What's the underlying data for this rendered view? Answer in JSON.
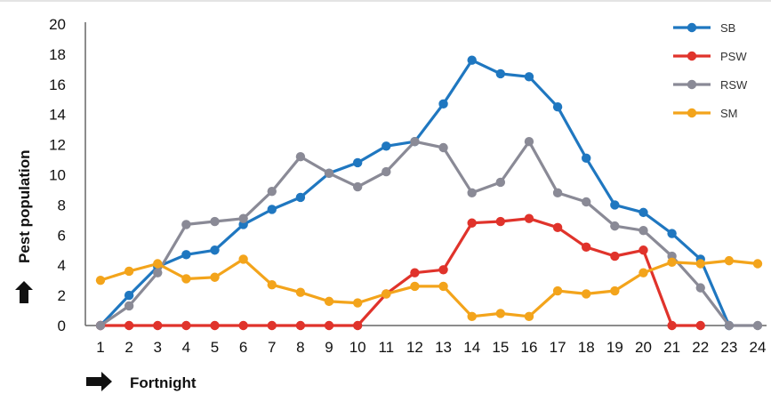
{
  "chart_data": {
    "type": "line",
    "title": "",
    "xlabel": "Fortnight",
    "ylabel": "Pest population",
    "categories": [
      1,
      2,
      3,
      4,
      5,
      6,
      7,
      8,
      9,
      10,
      11,
      12,
      13,
      14,
      15,
      16,
      17,
      18,
      19,
      20,
      21,
      22,
      23,
      24
    ],
    "ylim": [
      0,
      20
    ],
    "yticks": [
      0,
      2,
      4,
      6,
      8,
      10,
      12,
      14,
      16,
      18,
      20
    ],
    "grid": false,
    "legend_position": "top-right",
    "series": [
      {
        "name": "SB",
        "color": "#1f77c0",
        "values": [
          0,
          2,
          3.9,
          4.7,
          5,
          6.7,
          7.7,
          8.5,
          10.1,
          10.8,
          11.9,
          12.2,
          14.7,
          17.6,
          16.7,
          16.5,
          14.5,
          11.1,
          8,
          7.5,
          6.1,
          4.4,
          0,
          null
        ]
      },
      {
        "name": "PSW",
        "color": "#e0332b",
        "values": [
          0,
          0,
          0,
          0,
          0,
          0,
          0,
          0,
          0,
          0,
          2.1,
          3.5,
          3.7,
          6.8,
          6.9,
          7.1,
          6.5,
          5.2,
          4.6,
          5,
          0,
          0,
          null,
          null
        ]
      },
      {
        "name": "RSW",
        "color": "#8a8a96",
        "values": [
          0,
          1.3,
          3.5,
          6.7,
          6.9,
          7.1,
          8.9,
          11.2,
          10.1,
          9.2,
          10.2,
          12.2,
          11.8,
          8.8,
          9.5,
          12.2,
          8.8,
          8.2,
          6.6,
          6.3,
          4.6,
          2.5,
          0,
          0
        ]
      },
      {
        "name": "SM",
        "color": "#f3a41b",
        "values": [
          3,
          3.6,
          4.1,
          3.1,
          3.2,
          4.4,
          2.7,
          2.2,
          1.6,
          1.5,
          2.1,
          2.6,
          2.6,
          0.6,
          0.8,
          0.6,
          2.3,
          2.1,
          2.3,
          3.5,
          4.2,
          4.1,
          4.3,
          4.1
        ]
      }
    ]
  }
}
